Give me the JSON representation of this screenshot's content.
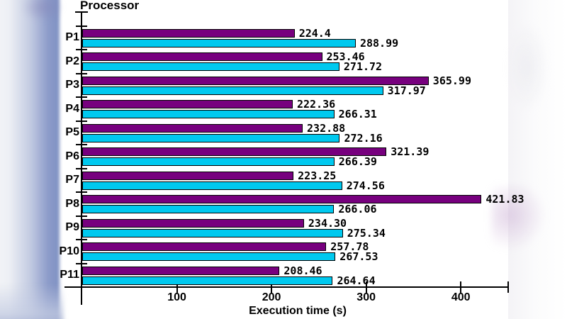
{
  "chart_data": {
    "type": "bar",
    "orientation": "horizontal",
    "ylabel": "Processor",
    "xlabel": "Execution time (s)",
    "xlim": [
      0,
      450
    ],
    "xticks": [
      100,
      200,
      300,
      400
    ],
    "grid": false,
    "legend": false,
    "axis_color": "#000000",
    "categories": [
      "P1",
      "P2",
      "P3",
      "P4",
      "P5",
      "P6",
      "P7",
      "P8",
      "P9",
      "P10",
      "P11"
    ],
    "series": [
      {
        "name": "purple",
        "color": "#77007E",
        "border_color": "#000000",
        "values": [
          224.4,
          253.46,
          365.99,
          222.36,
          232.88,
          321.39,
          223.25,
          421.83,
          234.3,
          257.78,
          208.46
        ],
        "labels": [
          "224.4",
          "253.46",
          "365.99",
          "222.36",
          "232.88",
          "321.39",
          "223.25",
          "421.83",
          "234.30",
          "257.78",
          "208.46"
        ]
      },
      {
        "name": "cyan",
        "color": "#00C9EF",
        "border_color": "#000000",
        "values": [
          288.99,
          271.72,
          317.97,
          266.31,
          272.16,
          266.39,
          274.56,
          266.06,
          275.34,
          267.53,
          264.64
        ],
        "labels": [
          "288.99",
          "271.72",
          "317.97",
          "266.31",
          "272.16",
          "266.39",
          "274.56",
          "266.06",
          "275.34",
          "267.53",
          "264.64"
        ]
      }
    ]
  }
}
